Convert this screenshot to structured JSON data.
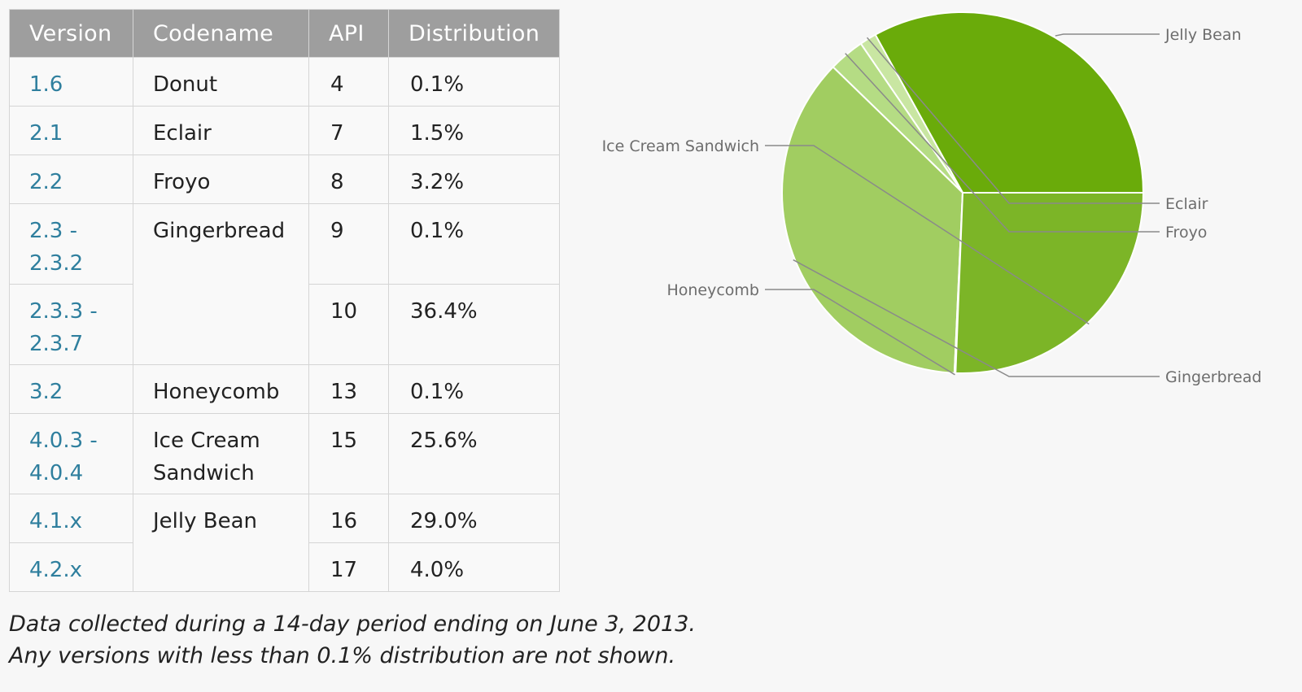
{
  "table": {
    "headers": [
      "Version",
      "Codename",
      "API",
      "Distribution"
    ],
    "rows": [
      {
        "version": "1.6",
        "codename": "Donut",
        "api": "4",
        "distribution": "0.1%"
      },
      {
        "version": "2.1",
        "codename": "Eclair",
        "api": "7",
        "distribution": "1.5%"
      },
      {
        "version": "2.2",
        "codename": "Froyo",
        "api": "8",
        "distribution": "3.2%"
      },
      {
        "version": "2.3 -\n2.3.2",
        "codename": "Gingerbread",
        "api": "9",
        "distribution": "0.1%"
      },
      {
        "version": "2.3.3 -\n2.3.7",
        "api": "10",
        "distribution": "36.4%"
      },
      {
        "version": "3.2",
        "codename": "Honeycomb",
        "api": "13",
        "distribution": "0.1%"
      },
      {
        "version": "4.0.3 -\n4.0.4",
        "codename": "Ice Cream\nSandwich",
        "api": "15",
        "distribution": "25.6%"
      },
      {
        "version": "4.1.x",
        "codename": "Jelly Bean",
        "api": "16",
        "distribution": "29.0%"
      },
      {
        "version": "4.2.x",
        "api": "17",
        "distribution": "4.0%"
      }
    ]
  },
  "footnote": {
    "line1": "Data collected during a 14-day period ending on June 3, 2013.",
    "line2": "Any versions with less than 0.1% distribution are not shown."
  },
  "chart_data": {
    "type": "pie",
    "slices": [
      {
        "label": "Jelly Bean",
        "value": 33.0,
        "color": "#6aab0a"
      },
      {
        "label": "Eclair",
        "value": 1.5,
        "color": "#c9e6a2"
      },
      {
        "label": "Froyo",
        "value": 3.2,
        "color": "#b5dc84"
      },
      {
        "label": "Gingerbread",
        "value": 36.5,
        "color": "#a1cd61"
      },
      {
        "label": "Honeycomb",
        "value": 0.1,
        "color": "#8cc13a"
      },
      {
        "label": "Ice Cream Sandwich",
        "value": 25.6,
        "color": "#7cb527"
      }
    ]
  }
}
